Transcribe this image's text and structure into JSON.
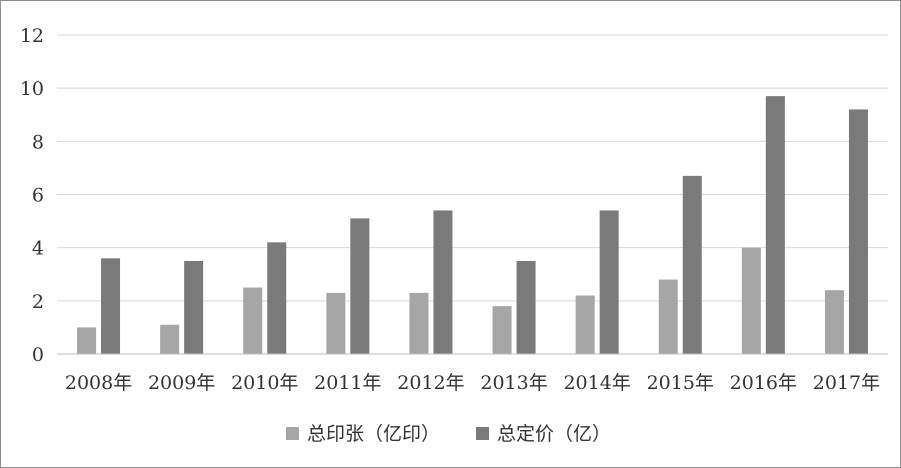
{
  "chart_data": {
    "type": "bar",
    "categories": [
      "2008年",
      "2009年",
      "2010年",
      "2011年",
      "2012年",
      "2013年",
      "2014年",
      "2015年",
      "2016年",
      "2017年"
    ],
    "series": [
      {
        "name": "总印张（亿印）",
        "color": "#a6a6a6",
        "values": [
          1.0,
          1.1,
          2.5,
          2.3,
          2.3,
          1.8,
          2.2,
          2.8,
          4.0,
          2.4
        ]
      },
      {
        "name": "总定价（亿）",
        "color": "#7a7a7a",
        "values": [
          3.6,
          3.5,
          4.2,
          5.1,
          5.4,
          3.5,
          5.4,
          6.7,
          9.7,
          9.2
        ]
      }
    ],
    "ylim": [
      0,
      12
    ],
    "yticks": [
      0,
      2,
      4,
      6,
      8,
      10,
      12
    ],
    "grid": true,
    "legend": "bottom-center",
    "title": "",
    "xlabel": "",
    "ylabel": ""
  }
}
